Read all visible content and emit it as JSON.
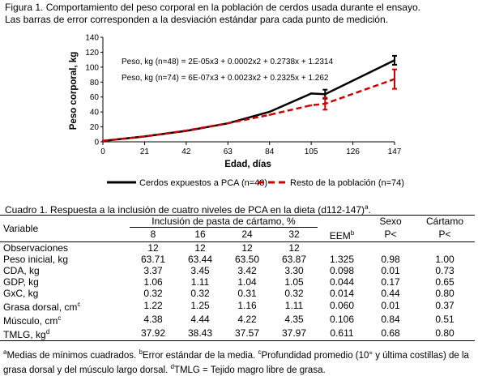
{
  "figure": {
    "caption_line1": "Figura 1. Comportamiento del peso corporal en la población de cerdos usada durante el ensayo.",
    "caption_line2": "Las barras de error corresponden a la desviación estándar para cada punto de medición."
  },
  "chart_data": {
    "type": "line",
    "xlabel": "Edad, días",
    "ylabel": "Peso corporal, kg",
    "xlim": [
      0,
      147
    ],
    "ylim": [
      0,
      140
    ],
    "x_ticks": [
      "0",
      "21",
      "42",
      "63",
      "84",
      "105",
      "126",
      "147"
    ],
    "y_ticks": [
      "0",
      "20",
      "40",
      "60",
      "80",
      "100",
      "120",
      "140"
    ],
    "grid": false,
    "legend_position": "bottom",
    "series": [
      {
        "name": "Cerdos expuestos a PCA (n=48)",
        "color": "#000000",
        "style": "solid",
        "equation": "Peso, kg (n=48) = 2E-05x3 + 0.0002x2 + 0.2738x + 1.2314",
        "points": [
          [
            0,
            1.2
          ],
          [
            21,
            7.2
          ],
          [
            42,
            14.6
          ],
          [
            63,
            24.7
          ],
          [
            84,
            40.2
          ],
          [
            105,
            64.7
          ],
          [
            112,
            63.8
          ],
          [
            147,
            109.2
          ]
        ],
        "error_bars": [
          {
            "x": 112,
            "y": 63.8,
            "sd": 6
          },
          {
            "x": 147,
            "y": 109.2,
            "sd": 6
          }
        ]
      },
      {
        "name": "Resto de la población (n=74)",
        "color": "#cc0000",
        "style": "dashed",
        "equation": "Peso, kg (n=74) = 6E-07x3 + 0.0023x2 + 0.2325x + 1.262",
        "points": [
          [
            0,
            1.3
          ],
          [
            21,
            7.1
          ],
          [
            42,
            15.1
          ],
          [
            63,
            24.9
          ],
          [
            84,
            36.1
          ],
          [
            105,
            48.9
          ],
          [
            112,
            51.0
          ],
          [
            147,
            84.0
          ]
        ],
        "error_bars": [
          {
            "x": 112,
            "y": 51.0,
            "sd": 8
          },
          {
            "x": 147,
            "y": 84.0,
            "sd": 13
          }
        ]
      }
    ]
  },
  "table": {
    "title": "Cuadro 1. Respuesta a la inclusión de cuatro niveles de PCA en la dieta (d112-147)",
    "title_sup": "a",
    "head": {
      "variable": "Variable",
      "group": "Inclusión de pasta de cártamo, %",
      "levels": [
        "8",
        "16",
        "24",
        "32"
      ],
      "eem": "EEM",
      "eem_sup": "b",
      "sexo": "Sexo",
      "sexo_p": "P<",
      "cartamo": "Cártamo",
      "cartamo_p": "P<"
    },
    "rows": [
      {
        "label": "Observaciones",
        "sup": "",
        "values": [
          "12",
          "12",
          "12",
          "12",
          "",
          "",
          ""
        ]
      },
      {
        "label": "Peso inicial, kg",
        "sup": "",
        "values": [
          "63.71",
          "63.44",
          "63.50",
          "63.87",
          "1.325",
          "0.98",
          "1.00"
        ]
      },
      {
        "label": "CDA, kg",
        "sup": "",
        "values": [
          "3.37",
          "3.45",
          "3.42",
          "3.30",
          "0.098",
          "0.01",
          "0.73"
        ]
      },
      {
        "label": "GDP, kg",
        "sup": "",
        "values": [
          "1.06",
          "1.11",
          "1.04",
          "1.05",
          "0.044",
          "0.17",
          "0.65"
        ]
      },
      {
        "label": "GxC, kg",
        "sup": "",
        "values": [
          "0.32",
          "0.32",
          "0.31",
          "0.32",
          "0.014",
          "0.44",
          "0.80"
        ]
      },
      {
        "label": "Grasa dorsal, cm",
        "sup": "c",
        "values": [
          "1.22",
          "1.25",
          "1.16",
          "1.11",
          "0.060",
          "0.01",
          "0.37"
        ]
      },
      {
        "label": "Músculo, cm",
        "sup": "c",
        "values": [
          "4.38",
          "4.44",
          "4.22",
          "4.35",
          "0.106",
          "0.84",
          "0.51"
        ]
      },
      {
        "label": "TMLG, kg",
        "sup": "d",
        "values": [
          "37.92",
          "38.43",
          "37.57",
          "37.97",
          "0.611",
          "0.68",
          "0.80"
        ]
      }
    ]
  },
  "footnotes": {
    "a_mark": "a",
    "a_text": "Medias de mínimos cuadrados. ",
    "b_mark": "b",
    "b_text": "Error estándar de la media. ",
    "c_mark": "c",
    "c_text": "Profundidad promedio (10° y última costillas) de la grasa dorsal y del músculo largo dorsal. ",
    "d_mark": "d",
    "d_text": "TMLG = Tejido magro libre de grasa."
  }
}
